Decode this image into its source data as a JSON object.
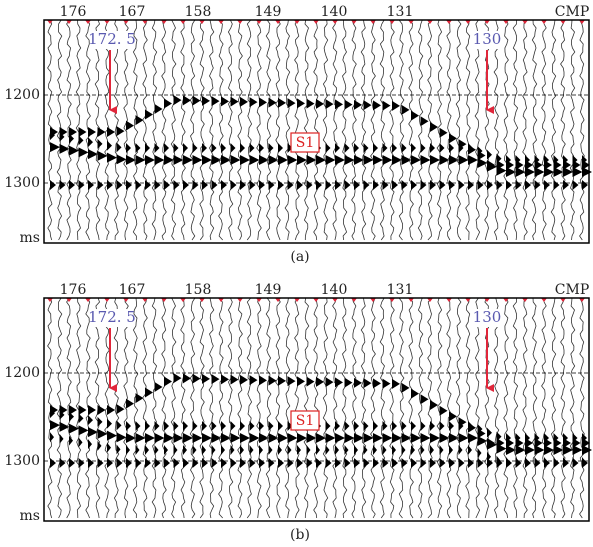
{
  "panels": [
    {
      "x_labels": [
        "176",
        "167",
        "158",
        "149",
        "140",
        "131",
        "CMP"
      ],
      "y_labels": [
        "1200",
        "1300",
        "ms"
      ],
      "annotations": [
        "172. 5",
        "130",
        "S1"
      ],
      "caption": "(a)"
    },
    {
      "x_labels": [
        "176",
        "167",
        "158",
        "149",
        "140",
        "131",
        "CMP"
      ],
      "y_labels": [
        "1200",
        "1300",
        "ms"
      ],
      "annotations": [
        "172. 5",
        "130",
        "S1"
      ],
      "caption": "(b)"
    }
  ]
}
